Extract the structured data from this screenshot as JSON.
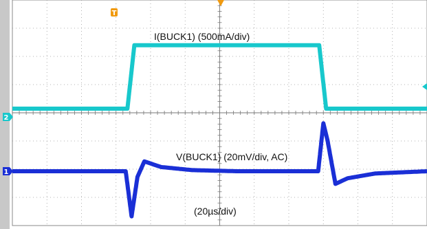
{
  "chart_data": {
    "type": "line",
    "time_scale": "(20µs/div)",
    "series": [
      {
        "name": "I(BUCK1) (500mA/div)",
        "channel": "2",
        "color": "#18c8cc",
        "units": "div",
        "x_div": [
          0,
          3.33,
          3.53,
          8.88,
          9.08,
          12.0
        ],
        "y_div": [
          0,
          0,
          2.25,
          2.25,
          0,
          0
        ],
        "label": "I(BUCK1) (500mA/div)"
      },
      {
        "name": "V(BUCK1) (20mV/div, AC)",
        "channel": "1",
        "color": "#1a2fd6",
        "units": "div",
        "x_div": [
          0,
          3.28,
          3.45,
          3.62,
          3.82,
          4.3,
          5.2,
          6.5,
          8.85,
          9.0,
          9.12,
          9.35,
          9.7,
          10.5,
          12.0
        ],
        "y_div": [
          0,
          0,
          -1.6,
          -0.2,
          0.35,
          0.15,
          0.04,
          0.0,
          0.0,
          1.7,
          1.1,
          -0.45,
          -0.25,
          -0.08,
          0
        ],
        "label": "V(BUCK1) (20mV/div, AC)"
      }
    ],
    "grid": true,
    "x_divisions": 12,
    "y_divisions": 8
  },
  "markers": {
    "trigger": "T",
    "ch2": "2",
    "ch1": "1"
  },
  "colors": {
    "trigger": "#f09a10",
    "frame": "#888888",
    "grid": "#9a9a9a"
  }
}
